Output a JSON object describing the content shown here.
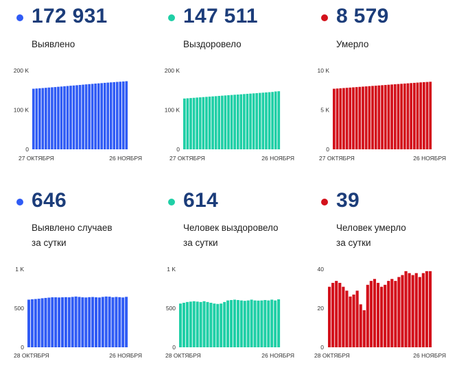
{
  "colors": {
    "blue": "#2f5bf5",
    "teal": "#1fcfa6",
    "red": "#d3111b"
  },
  "panels": [
    {
      "value": "172 931",
      "label_lines": [
        "Выявлено"
      ],
      "color": "blue"
    },
    {
      "value": "147 511",
      "label_lines": [
        "Выздоровело"
      ],
      "color": "teal"
    },
    {
      "value": "8 579",
      "label_lines": [
        "Умерло"
      ],
      "color": "red"
    },
    {
      "value": "646",
      "label_lines": [
        "Выявлено случаев",
        "за сутки"
      ],
      "color": "blue"
    },
    {
      "value": "614",
      "label_lines": [
        "Человек выздоровело",
        "за сутки"
      ],
      "color": "teal"
    },
    {
      "value": "39",
      "label_lines": [
        "Человек умерло",
        "за сутки"
      ],
      "color": "red"
    }
  ],
  "chart_data": [
    {
      "type": "bar",
      "title": "Выявлено",
      "xtick_start": "27 ОКТЯБРЯ",
      "xtick_end": "26 НОЯБРЯ",
      "yticks": [
        "200 K",
        "100 K",
        "0"
      ],
      "ylim": [
        0,
        200000
      ],
      "values": [
        153800,
        154400,
        155000,
        155600,
        156200,
        156900,
        157500,
        158100,
        158800,
        159400,
        160100,
        160800,
        161500,
        162100,
        162800,
        163500,
        164200,
        164900,
        165600,
        166200,
        166900,
        167500,
        168100,
        168800,
        169400,
        170000,
        170600,
        171200,
        171700,
        172300,
        172931
      ]
    },
    {
      "type": "bar",
      "title": "Выздоровело",
      "xtick_start": "27 ОКТЯБРЯ",
      "xtick_end": "26 НОЯБРЯ",
      "yticks": [
        "200 K",
        "100 K",
        "0"
      ],
      "ylim": [
        0,
        200000
      ],
      "values": [
        129000,
        129600,
        130200,
        130800,
        131400,
        132000,
        132600,
        133200,
        133800,
        134400,
        135000,
        135600,
        136200,
        136800,
        137400,
        138000,
        138600,
        139100,
        139700,
        140300,
        140900,
        141500,
        142100,
        142700,
        143300,
        143900,
        144500,
        145100,
        145700,
        146900,
        147511
      ]
    },
    {
      "type": "bar",
      "title": "Умерло",
      "xtick_start": "27 ОКТЯБРЯ",
      "xtick_end": "26 НОЯБРЯ",
      "yticks": [
        "10 K",
        "5 K",
        "0"
      ],
      "ylim": [
        0,
        10000
      ],
      "values": [
        7690,
        7720,
        7750,
        7780,
        7810,
        7840,
        7870,
        7900,
        7930,
        7960,
        7990,
        8020,
        8050,
        8080,
        8110,
        8140,
        8170,
        8200,
        8230,
        8260,
        8290,
        8320,
        8350,
        8380,
        8410,
        8440,
        8470,
        8500,
        8530,
        8550,
        8579
      ]
    },
    {
      "type": "bar",
      "title": "Выявлено случаев за сутки",
      "xtick_start": "28 ОКТЯБРЯ",
      "xtick_end": "26 НОЯБРЯ",
      "yticks": [
        "1 K",
        "500",
        "0"
      ],
      "ylim": [
        0,
        1000
      ],
      "values": [
        610,
        615,
        618,
        622,
        628,
        632,
        636,
        640,
        640,
        638,
        640,
        642,
        640,
        645,
        650,
        645,
        640,
        638,
        642,
        644,
        640,
        638,
        645,
        650,
        648,
        640,
        645,
        642,
        638,
        646
      ]
    },
    {
      "type": "bar",
      "title": "Человек выздоровело за сутки",
      "xtick_start": "28 ОКТЯБРЯ",
      "xtick_end": "26 НОЯБРЯ",
      "yticks": [
        "1 K",
        "500",
        "0"
      ],
      "ylim": [
        0,
        1000
      ],
      "values": [
        560,
        570,
        580,
        585,
        590,
        585,
        580,
        590,
        580,
        570,
        560,
        555,
        560,
        580,
        600,
        605,
        610,
        605,
        600,
        595,
        600,
        610,
        600,
        598,
        600,
        605,
        600,
        610,
        600,
        614
      ]
    },
    {
      "type": "bar",
      "title": "Человек умерло за сутки",
      "xtick_start": "28 ОКТЯБРЯ",
      "xtick_end": "26 НОЯБРЯ",
      "yticks": [
        "40",
        "20",
        "0"
      ],
      "ylim": [
        0,
        40
      ],
      "values": [
        31,
        33,
        34,
        33,
        31,
        29,
        26,
        27,
        29,
        22,
        19,
        32,
        34,
        35,
        33,
        31,
        32,
        34,
        35,
        34,
        36,
        37,
        39,
        38,
        37,
        38,
        36,
        38,
        39,
        39
      ]
    }
  ]
}
